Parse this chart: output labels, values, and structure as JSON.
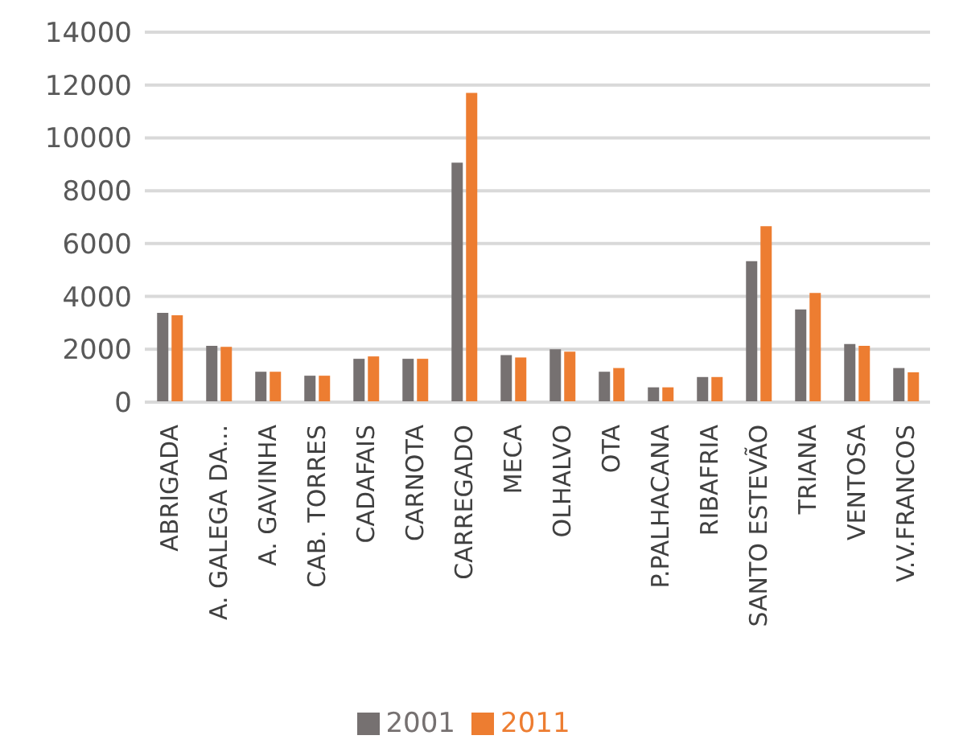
{
  "chart_data": {
    "type": "bar",
    "categories": [
      "ABRIGADA",
      "A. GALEGA DA...",
      "A. GAVINHA",
      "CAB. TORRES",
      "CADAFAIS",
      "CARNOTA",
      "CARREGADO",
      "MECA",
      "OLHALVO",
      "OTA",
      "P.PALHACANA",
      "RIBAFRIA",
      "SANTO ESTEVÃO",
      "TRIANA",
      "VENTOSA",
      "V.V.FRANCOS"
    ],
    "series": [
      {
        "name": "2001",
        "color": "#767171",
        "values": [
          3380,
          2130,
          1150,
          1000,
          1640,
          1640,
          9060,
          1780,
          2000,
          1150,
          560,
          950,
          5330,
          3510,
          2200,
          1290
        ]
      },
      {
        "name": "2011",
        "color": "#ed7d31",
        "values": [
          3290,
          2090,
          1150,
          1000,
          1730,
          1640,
          11700,
          1690,
          1910,
          1290,
          560,
          950,
          6660,
          4130,
          2130,
          1130
        ]
      }
    ],
    "ylim": [
      0,
      14000
    ],
    "yticks": [
      0,
      2000,
      4000,
      6000,
      8000,
      10000,
      12000,
      14000
    ],
    "grid": "y",
    "legend": "bottom"
  }
}
